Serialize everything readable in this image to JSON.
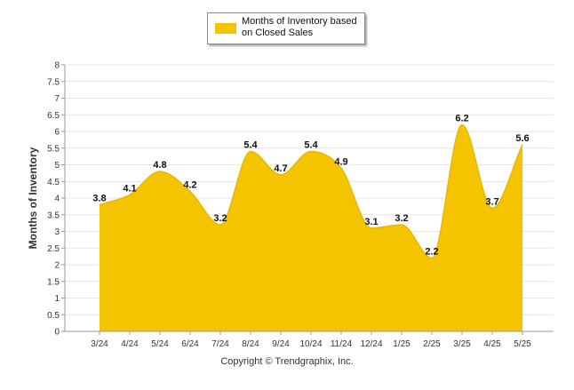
{
  "chart_data": {
    "type": "area",
    "categories": [
      "3/24",
      "4/24",
      "5/24",
      "6/24",
      "7/24",
      "8/24",
      "9/24",
      "10/24",
      "11/24",
      "12/24",
      "1/25",
      "2/25",
      "3/25",
      "4/25",
      "5/25"
    ],
    "series": [
      {
        "name": "Months of Inventory based on Closed Sales",
        "values": [
          3.8,
          4.1,
          4.8,
          4.2,
          3.2,
          5.4,
          4.7,
          5.4,
          4.9,
          3.1,
          3.2,
          2.2,
          6.2,
          3.7,
          5.6
        ],
        "color": "#f5c400"
      }
    ],
    "data_labels": [
      "3.8",
      "4.1",
      "4.8",
      "4.2",
      "3.2",
      "5.4",
      "4.7",
      "5.4",
      "4.9",
      "3.1",
      "3.2",
      "2.2",
      "6.2",
      "3.7",
      "5.6"
    ],
    "title": "",
    "xlabel": "",
    "ylabel": "Months of Inventory",
    "ylim": [
      0,
      8
    ],
    "y_ticks": [
      "0",
      "0.5",
      "1",
      "1.5",
      "2",
      "2.5",
      "3",
      "3.5",
      "4",
      "4.5",
      "5",
      "5.5",
      "6",
      "6.5",
      "7",
      "7.5",
      "8"
    ],
    "grid": true,
    "legend_position": "top-center"
  },
  "legend": {
    "label": "Months of Inventory based on Closed Sales",
    "color": "#f5c400"
  },
  "footer": {
    "copyright": "Copyright © Trendgraphix, Inc."
  }
}
